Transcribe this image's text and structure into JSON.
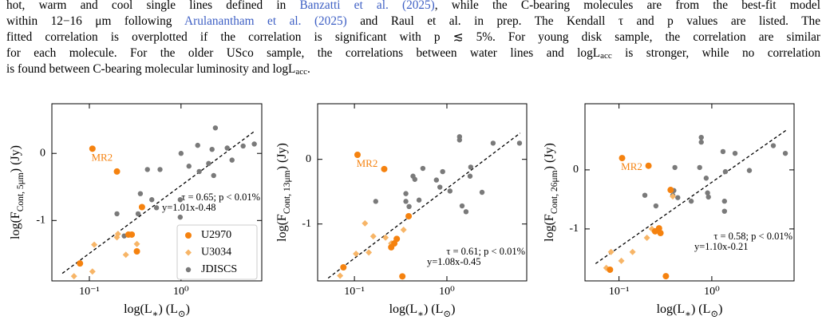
{
  "caption": [
    [
      {
        "text": "hot, warm and cool single lines defined in "
      },
      {
        "text": "Banzatti et al. (2025)",
        "style": "link"
      },
      {
        "text": ", while the C-bearing molecules are from the best-fit model"
      }
    ],
    [
      {
        "text": "within 12−16 μm following "
      },
      {
        "text": "Arulanantham et al. (2025)",
        "style": "link"
      },
      {
        "text": " and Raul et al.  in prep. The Kendall τ and p values are listed. The"
      }
    ],
    [
      {
        "text": "fitted correlation is overplotted if the correlation is significant with p ≲ 5%. For young disk sample, the correlation are similar"
      }
    ],
    [
      {
        "text": "for each molecule. For the older USco sample, the correlations between water lines and logL"
      },
      {
        "text": "acc",
        "style": "sub"
      },
      {
        "text": " is stronger, while no correlation"
      }
    ],
    [
      {
        "text": "is found between C-bearing molecular luminosity and logL"
      },
      {
        "text": "acc",
        "style": "sub"
      },
      {
        "text": "."
      }
    ]
  ],
  "chart_data": [
    {
      "type": "scatter",
      "xscale": "log",
      "xlabel": [
        {
          "text": "log(L"
        },
        {
          "text": "∗",
          "style": "sub"
        },
        {
          "text": ") (L"
        },
        {
          "text": "⊙",
          "style": "sub"
        },
        {
          "text": ")"
        }
      ],
      "ylabel": [
        {
          "text": "log(F"
        },
        {
          "text": "Cont, 5μm",
          "style": "sub"
        },
        {
          "text": ") (Jy)"
        }
      ],
      "xlim": [
        0.039,
        7.6
      ],
      "ylim": [
        -1.9,
        0.74
      ],
      "xticks": [
        {
          "value": 0.1,
          "label": "10⁻¹"
        },
        {
          "value": 1,
          "label": "10⁰"
        }
      ],
      "yticks": [
        -1,
        0
      ],
      "legend": "lower right",
      "annotation": "MR2",
      "stats_text": "τ = 0.65; p < 0.01%",
      "fit_text": "y=1.01x-0.48",
      "fit": {
        "slope": 1.01,
        "intercept": -0.48
      },
      "series": [
        {
          "name": "U2970",
          "color": "#f5820f",
          "marker": "o",
          "x": [
            0.108,
            0.2,
            0.375,
            0.267,
            0.29,
            0.33,
            0.079
          ],
          "values": [
            0.07,
            -0.27,
            -0.8,
            -1.21,
            -1.21,
            -1.46,
            -1.64
          ]
        },
        {
          "name": "U3034",
          "color": "#f7b567",
          "marker": "D",
          "x": [
            0.113,
            0.068,
            0.108,
            0.205,
            0.33,
            0.25,
            0.2
          ],
          "values": [
            -1.36,
            -1.83,
            -1.76,
            -1.2,
            -1.35,
            -1.51,
            -1.25
          ]
        },
        {
          "name": "JDISCS",
          "color": "#7a7a7a",
          "marker": "o",
          "x": [
            1.52,
            2.18,
            1.0,
            3.19,
            2.37,
            3.6,
            4.76,
            6.3,
            2.0,
            1.22,
            0.43,
            0.59,
            0.36,
            0.48,
            0.54,
            0.34,
            0.98,
            0.98,
            0.2,
            0.24,
            2.27,
            1.58
          ],
          "values": [
            0.12,
            0.06,
            0,
            0.08,
            0.38,
            -0.1,
            0.11,
            0.14,
            -0.15,
            -0.19,
            -0.24,
            -0.24,
            -0.6,
            -0.69,
            -0.81,
            -0.9,
            -0.69,
            -0.95,
            -0.9,
            -1.23,
            -0.33,
            -0.27
          ]
        }
      ]
    },
    {
      "type": "scatter",
      "xscale": "log",
      "xlabel": [
        {
          "text": "log(L"
        },
        {
          "text": "∗",
          "style": "sub"
        },
        {
          "text": ") (L"
        },
        {
          "text": "⊙",
          "style": "sub"
        },
        {
          "text": ")"
        }
      ],
      "ylabel": [
        {
          "text": "log(F"
        },
        {
          "text": "Cont, 13μm",
          "style": "sub"
        },
        {
          "text": ") (Jy)"
        }
      ],
      "xlim": [
        0.04,
        7.3
      ],
      "ylim": [
        -1.88,
        0.86
      ],
      "xticks": [
        {
          "value": 0.1,
          "label": "10⁻¹"
        },
        {
          "value": 1,
          "label": "10⁰"
        }
      ],
      "yticks": [
        -1,
        0
      ],
      "annotation": "MR2",
      "stats_text": "τ = 0.61; p < 0.01%",
      "fit_text": "y=1.08x-0.45",
      "fit": {
        "slope": 1.08,
        "intercept": -0.45
      },
      "series": [
        {
          "name": "U2970",
          "color": "#f5820f",
          "marker": "o",
          "x": [
            0.108,
            0.21,
            0.386,
            0.287,
            0.27,
            0.25,
            0.076,
            0.33
          ],
          "values": [
            0.07,
            -0.15,
            -0.88,
            -1.23,
            -1.3,
            -1.36,
            -1.67,
            -1.81
          ]
        },
        {
          "name": "U3034",
          "color": "#f7b567",
          "marker": "D",
          "x": [
            0.104,
            0.07,
            0.143,
            0.217,
            0.25,
            0.13,
            0.34,
            0.16
          ],
          "values": [
            -1.46,
            -1.8,
            -1.44,
            -1.21,
            -1.3,
            -0.99,
            -1.09,
            -1.19
          ]
        },
        {
          "name": "JDISCS",
          "color": "#7a7a7a",
          "marker": "o",
          "x": [
            1.37,
            1.37,
            3.16,
            6.1,
            1.81,
            0.9,
            0.55,
            0.77,
            0.84,
            1.08,
            0.45,
            0.43,
            0.36,
            0.36,
            0.39,
            1.46,
            1.61,
            2.4,
            1.78,
            0.17,
            0.5
          ],
          "values": [
            0.35,
            0.3,
            0.25,
            0.25,
            -0.12,
            -0.19,
            -0.14,
            -0.32,
            -0.43,
            -0.49,
            -0.31,
            -0.26,
            -0.53,
            -0.65,
            -0.73,
            -0.72,
            -0.81,
            -0.51,
            -0.26,
            -0.65,
            -0.63
          ]
        }
      ]
    },
    {
      "type": "scatter",
      "xscale": "log",
      "xlabel": [
        {
          "text": "log(L"
        },
        {
          "text": "∗",
          "style": "sub"
        },
        {
          "text": ") (L"
        },
        {
          "text": "⊙",
          "style": "sub"
        },
        {
          "text": ")"
        }
      ],
      "ylabel": [
        {
          "text": "log(F"
        },
        {
          "text": "Cont, 26μm",
          "style": "sub"
        },
        {
          "text": ") (Jy)"
        }
      ],
      "xlim": [
        0.043,
        7.7
      ],
      "ylim": [
        -1.88,
        1.12
      ],
      "xticks": [
        {
          "value": 0.1,
          "label": "10⁻¹"
        },
        {
          "value": 1,
          "label": "10⁰"
        }
      ],
      "yticks": [
        -1,
        0
      ],
      "annotation": "MR2",
      "stats_text": "τ = 0.58; p < 0.01%",
      "fit_text": "y=1.10x-0.21",
      "fit": {
        "slope": 1.1,
        "intercept": -0.21
      },
      "series": [
        {
          "name": "U2970",
          "color": "#f5820f",
          "marker": "o",
          "x": [
            0.108,
            0.208,
            0.36,
            0.27,
            0.245,
            0.28,
            0.08,
            0.32
          ],
          "values": [
            0.2,
            0.07,
            -0.34,
            -0.99,
            -1.04,
            -1.07,
            -1.69,
            -1.8
          ]
        },
        {
          "name": "U3034",
          "color": "#f7b567",
          "marker": "D",
          "x": [
            0.106,
            0.073,
            0.14,
            0.2,
            0.226,
            0.082,
            0.38,
            0.25
          ],
          "values": [
            -1.54,
            -1.66,
            -1.39,
            -1.15,
            -1.0,
            -1.39,
            -0.45,
            -1.04
          ]
        },
        {
          "name": "JDISCS",
          "color": "#7a7a7a",
          "marker": "o",
          "x": [
            0.77,
            0.77,
            1.78,
            4.6,
            6.2,
            1.32,
            0.74,
            0.87,
            0.9,
            0.92,
            1.37,
            1.37,
            1.4,
            0.6,
            0.39,
            0.38,
            0.4,
            0.19,
            0.43,
            2.54,
            0.25
          ],
          "values": [
            0.55,
            0.47,
            0.28,
            0.41,
            0.28,
            0.31,
            0.04,
            -0.14,
            -0.39,
            -0.46,
            -0.53,
            -0.7,
            -0.03,
            -0.53,
            -0.35,
            -0.43,
            0.04,
            -0.43,
            -0.47,
            -0.01,
            -0.61
          ]
        }
      ]
    }
  ]
}
